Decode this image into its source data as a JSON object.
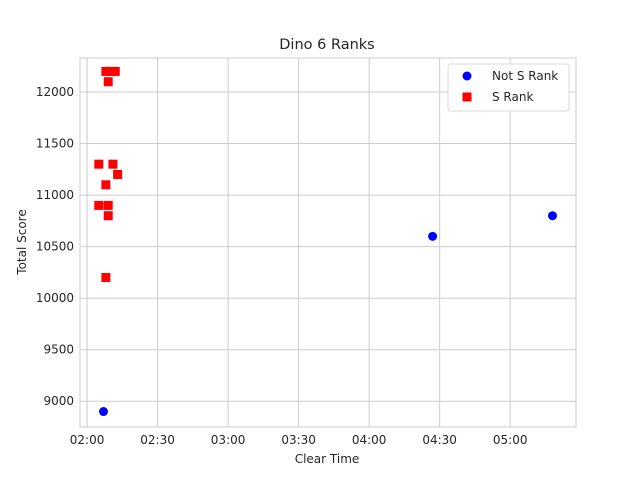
{
  "chart_data": {
    "type": "scatter",
    "title": "Dino 6 Ranks",
    "xlabel": "Clear Time",
    "ylabel": "Total Score",
    "x_unit": "mm:ss",
    "xlim": [
      "01:57",
      "05:28"
    ],
    "ylim": [
      8750,
      12330
    ],
    "x_ticks": [
      "02:00",
      "02:30",
      "03:00",
      "03:30",
      "04:00",
      "04:30",
      "05:00"
    ],
    "y_ticks": [
      9000,
      9500,
      10000,
      10500,
      11000,
      11500,
      12000
    ],
    "grid": true,
    "legend_position": "top-right",
    "series": [
      {
        "name": "Not S Rank",
        "marker": "circle",
        "color": "#0000ff",
        "points": [
          {
            "x": "02:07",
            "y": 8900
          },
          {
            "x": "04:27",
            "y": 10600
          },
          {
            "x": "05:18",
            "y": 10800
          }
        ]
      },
      {
        "name": "S Rank",
        "marker": "square",
        "color": "#ff0000",
        "points": [
          {
            "x": "02:08",
            "y": 12200
          },
          {
            "x": "02:10",
            "y": 12200
          },
          {
            "x": "02:12",
            "y": 12200
          },
          {
            "x": "02:09",
            "y": 12100
          },
          {
            "x": "02:05",
            "y": 11300
          },
          {
            "x": "02:11",
            "y": 11300
          },
          {
            "x": "02:13",
            "y": 11200
          },
          {
            "x": "02:08",
            "y": 11100
          },
          {
            "x": "02:05",
            "y": 10900
          },
          {
            "x": "02:09",
            "y": 10900
          },
          {
            "x": "02:09",
            "y": 10800
          },
          {
            "x": "02:08",
            "y": 10200
          }
        ]
      }
    ]
  }
}
